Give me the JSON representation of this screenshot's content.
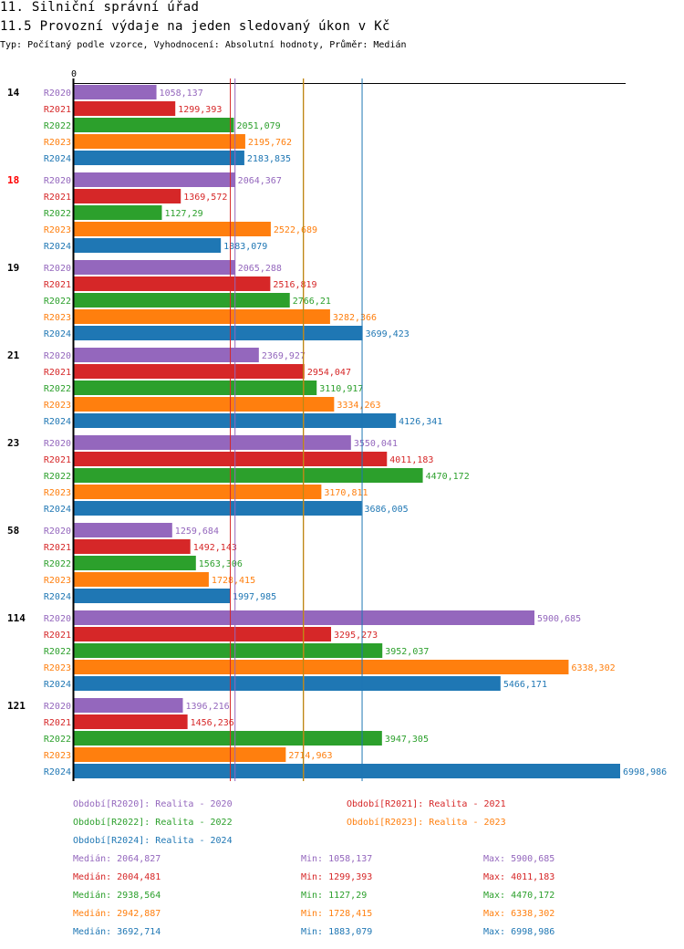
{
  "header": {
    "title": "11. Silniční správní úřad",
    "subtitle": "11.5 Provozní výdaje na jeden sledovaný úkon v Kč",
    "meta": "Typ: Počítaný podle vzorce, Vyhodnocení: Absolutní hodnoty, Průměr: Medián"
  },
  "chart_data": {
    "type": "bar",
    "orientation": "horizontal",
    "title": "11.5 Provozní výdaje na jeden sledovaný úkon v Kč",
    "xlabel": "",
    "ylabel": "",
    "xlim": [
      0,
      6998.986
    ],
    "x_tick_labels": [
      "0"
    ],
    "grid": false,
    "legend_position": "bottom",
    "categories": [
      "14",
      "18",
      "19",
      "21",
      "23",
      "58",
      "114",
      "121"
    ],
    "highlighted_category": "18",
    "series": [
      {
        "name": "R2020",
        "legend": "Období[R2020]: Realita - 2020",
        "color": "#9467bd",
        "values": [
          1058.137,
          2064.367,
          2065.288,
          2369.927,
          3550.041,
          1259.684,
          5900.685,
          1396.216
        ],
        "labels": [
          "1058,137",
          "2064,367",
          "2065,288",
          "2369,927",
          "3550,041",
          "1259,684",
          "5900,685",
          "1396,216"
        ]
      },
      {
        "name": "R2021",
        "legend": "Období[R2021]: Realita - 2021",
        "color": "#d62728",
        "values": [
          1299.393,
          1369.572,
          2516.819,
          2954.047,
          4011.183,
          1492.143,
          3295.273,
          1456.236
        ],
        "labels": [
          "1299,393",
          "1369,572",
          "2516,819",
          "2954,047",
          "4011,183",
          "1492,143",
          "3295,273",
          "1456,236"
        ]
      },
      {
        "name": "R2022",
        "legend": "Období[R2022]: Realita - 2022",
        "color": "#2ca02c",
        "values": [
          2051.079,
          1127.29,
          2766.21,
          3110.917,
          4470.172,
          1563.306,
          3952.037,
          3947.305
        ],
        "labels": [
          "2051,079",
          "1127,29",
          "2766,21",
          "3110,917",
          "4470,172",
          "1563,306",
          "3952,037",
          "3947,305"
        ]
      },
      {
        "name": "R2023",
        "legend": "Období[R2023]: Realita - 2023",
        "color": "#ff7f0e",
        "values": [
          2195.762,
          2522.689,
          3282.366,
          3334.263,
          3170.811,
          1728.415,
          6338.302,
          2714.963
        ],
        "labels": [
          "2195,762",
          "2522,689",
          "3282,366",
          "3334,263",
          "3170,811",
          "1728,415",
          "6338,302",
          "2714,963"
        ]
      },
      {
        "name": "R2024",
        "legend": "Období[R2024]: Realita - 2024",
        "color": "#1f77b4",
        "values": [
          2183.835,
          1883.079,
          3699.423,
          4126.341,
          3686.005,
          1997.985,
          5466.171,
          6998.986
        ],
        "labels": [
          "2183,835",
          "1883,079",
          "3699,423",
          "4126,341",
          "3686,005",
          "1997,985",
          "5466,171",
          "6998,986"
        ]
      }
    ],
    "medians": [
      2064.827,
      2004.481,
      2938.564,
      2942.887,
      3692.714
    ],
    "stats": [
      {
        "median": "Medián: 2064,827",
        "min": "Min: 1058,137",
        "max": "Max: 5900,685"
      },
      {
        "median": "Medián: 2004,481",
        "min": "Min: 1299,393",
        "max": "Max: 4011,183"
      },
      {
        "median": "Medián: 2938,564",
        "min": "Min: 1127,29",
        "max": "Max: 4470,172"
      },
      {
        "median": "Medián: 2942,887",
        "min": "Min: 1728,415",
        "max": "Max: 6338,302"
      },
      {
        "median": "Medián: 3692,714",
        "min": "Min: 1883,079",
        "max": "Max: 6998,986"
      }
    ]
  }
}
